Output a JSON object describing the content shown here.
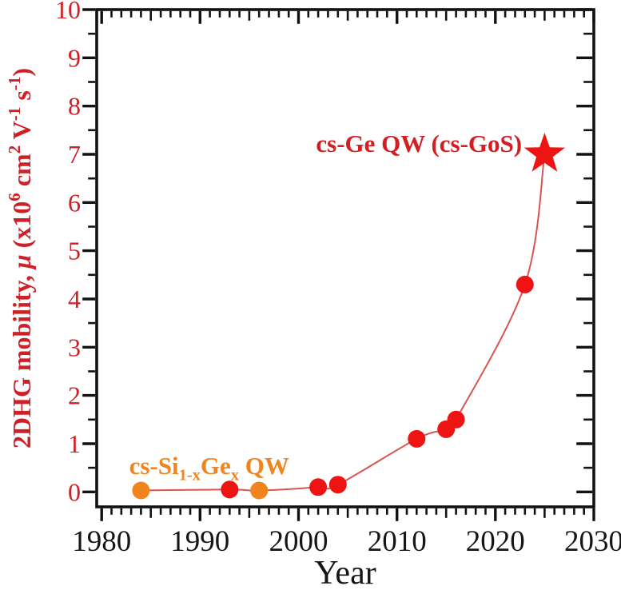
{
  "chart_data": {
    "type": "line",
    "title": "",
    "xlabel": "Year",
    "ylabel": "2DHG mobility, μ (x10⁶ cm² V⁻¹ s⁻¹)",
    "ylabel_runs": [
      {
        "t": "2DHG mobility, "
      },
      {
        "t": "μ",
        "italic": true
      },
      {
        "t": " (x10"
      },
      {
        "t": "6",
        "sup": true
      },
      {
        "t": " cm"
      },
      {
        "t": "2",
        "sup": true
      },
      {
        "t": " V"
      },
      {
        "t": "-1",
        "sup": true
      },
      {
        "t": " s"
      },
      {
        "t": "-1",
        "sup": true
      },
      {
        "t": ")"
      }
    ],
    "xlim": [
      1979.5,
      2030.0
    ],
    "ylim": [
      -0.31,
      10.0
    ],
    "x_major_ticks": [
      1980,
      1990,
      2000,
      2010,
      2020,
      2030
    ],
    "x_minor_step": 1,
    "x_mid_step": 5,
    "y_major_ticks": [
      0,
      1,
      2,
      3,
      4,
      5,
      6,
      7,
      8,
      9,
      10
    ],
    "y_minor_step": 0.5,
    "grid": false,
    "legend_position": "none",
    "series": [
      {
        "name": "cs-Si1-xGex QW",
        "marker": "circle",
        "color": "#f28420",
        "points": [
          [
            1984,
            0.03
          ],
          [
            1996,
            0.03
          ]
        ]
      },
      {
        "name": "cs-Ge QW",
        "marker": "circle",
        "color": "#ee1414",
        "points": [
          [
            1993,
            0.05
          ],
          [
            2002,
            0.1
          ],
          [
            2004,
            0.15
          ],
          [
            2012,
            1.1
          ],
          [
            2015,
            1.3
          ],
          [
            2016,
            1.5
          ],
          [
            2023,
            4.3
          ]
        ]
      },
      {
        "name": "cs-Ge QW (cs-GoS)",
        "marker": "star",
        "color": "#ee1414",
        "points": [
          [
            2025,
            7.0
          ]
        ]
      }
    ],
    "trend_line": {
      "color": "#d85450",
      "width": 2,
      "points": [
        [
          1984,
          0.03
        ],
        [
          1993,
          0.05
        ],
        [
          1996,
          0.03
        ],
        [
          2002,
          0.1
        ],
        [
          2004,
          0.15
        ],
        [
          2012,
          1.1
        ],
        [
          2015,
          1.3
        ],
        [
          2016,
          1.5
        ],
        [
          2023,
          4.3
        ],
        [
          2025,
          7.0
        ]
      ]
    },
    "annotations": [
      {
        "id": "cs-ge-qw-label",
        "text": "cs-Ge QW (cs-GoS)",
        "runs": [
          {
            "t": "cs-Ge QW (cs-GoS)"
          }
        ],
        "color": "#d31e22",
        "x": 2022.7,
        "y": 7.05,
        "anchor": "end",
        "bold": true
      },
      {
        "id": "cs-sige-qw-label",
        "text": "cs-Si1-xGex QW",
        "runs": [
          {
            "t": "cs-Si"
          },
          {
            "t": "1-x",
            "sub": true
          },
          {
            "t": "Ge"
          },
          {
            "t": "x",
            "sub": true
          },
          {
            "t": " QW"
          }
        ],
        "color": "#f28420",
        "x": 1982.8,
        "y": 0.37,
        "anchor": "start",
        "bold": true
      }
    ],
    "colors": {
      "axis": "#121212",
      "x_tick_label": "#161616",
      "y_tick_label": "#cd2127",
      "axis_label_y": "#cd2127",
      "axis_label_x": "#161616",
      "background": "#ffffff"
    }
  }
}
